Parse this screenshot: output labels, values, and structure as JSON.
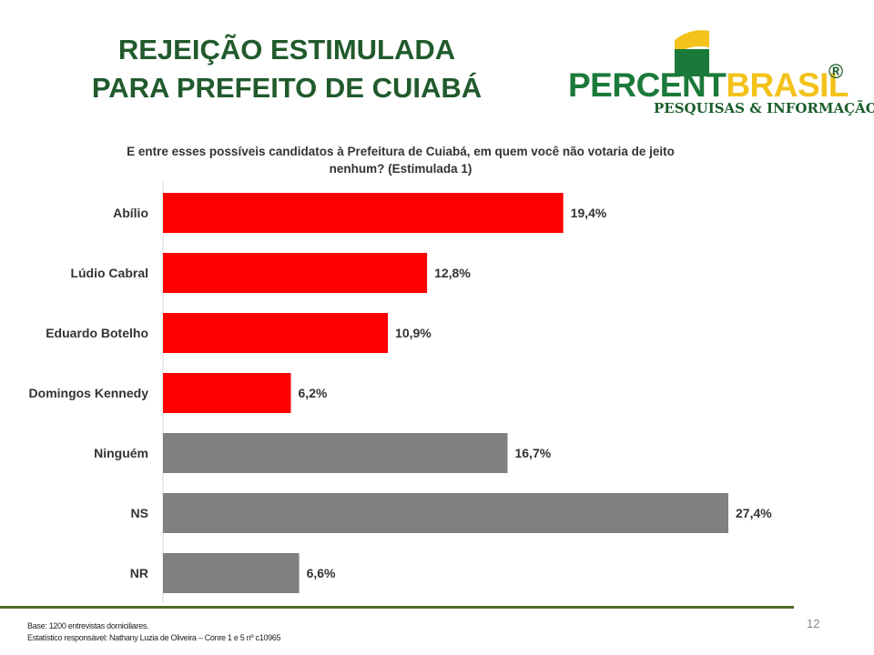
{
  "title_lines": [
    "REJEIÇÃO ESTIMULADA",
    "PARA PREFEITO DE CUIABÁ"
  ],
  "logo": {
    "word_part1": "PERCENT",
    "word_part2": "BRASIL",
    "registered": "®",
    "subtitle": "PESQUISAS & INFORMAÇÃO",
    "green": "#1b7a3a",
    "yellow": "#f3c21b"
  },
  "question_lines": [
    "E entre esses possíveis candidatos à Prefeitura de Cuiabá, em quem você não votaria de jeito",
    "nenhum? (Estimulada 1)"
  ],
  "chart_data": {
    "type": "bar",
    "orientation": "horizontal",
    "categories": [
      "Abílio",
      "Lúdio Cabral",
      "Eduardo Botelho",
      "Domingos Kennedy",
      "Ninguém",
      "NS",
      "NR"
    ],
    "values": [
      19.4,
      12.8,
      10.9,
      6.2,
      16.7,
      27.4,
      6.6
    ],
    "labels": [
      "19,4%",
      "12,8%",
      "10,9%",
      "6,2%",
      "16,7%",
      "27,4%",
      "6,6%"
    ],
    "colors": [
      "#ff0000",
      "#ff0000",
      "#ff0000",
      "#ff0000",
      "#808080",
      "#808080",
      "#808080"
    ],
    "xlim": [
      0,
      28
    ]
  },
  "footer": {
    "line1": "Base: 1200 entrevistas domiciliares.",
    "line2": "Estatístico responsável: Nathany Luzia de Oliveira – Conre 1 e 5 nº c10965"
  },
  "page_number": "12"
}
